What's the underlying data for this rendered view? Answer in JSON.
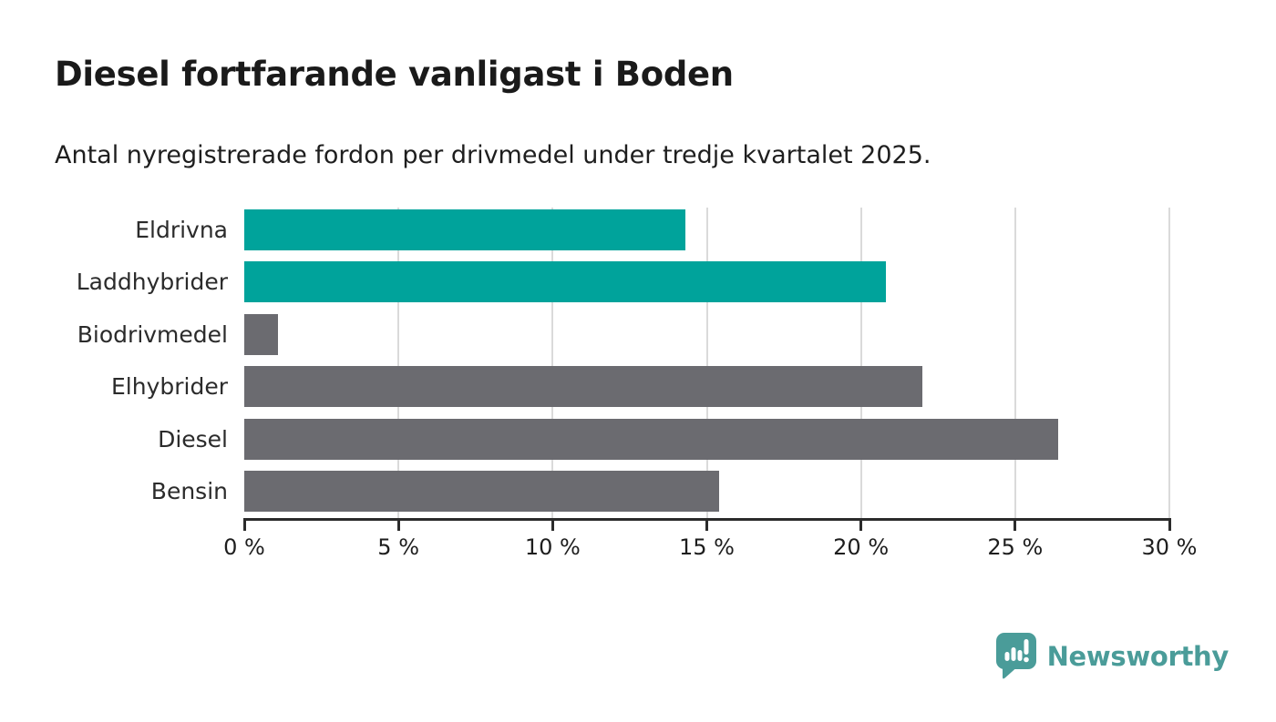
{
  "chart_data": {
    "type": "bar",
    "orientation": "horizontal",
    "title": "Diesel fortfarande vanligast i Boden",
    "subtitle": "Antal nyregistrerade fordon per drivmedel under tredje kvartalet 2025.",
    "categories": [
      "Eldrivna",
      "Laddhybrider",
      "Biodrivmedel",
      "Elhybrider",
      "Diesel",
      "Bensin"
    ],
    "values": [
      14.3,
      20.8,
      1.1,
      22.0,
      26.4,
      15.4
    ],
    "unit": "%",
    "bar_colors": [
      "#00A39B",
      "#00A39B",
      "#6B6B70",
      "#6B6B70",
      "#6B6B70",
      "#6B6B70"
    ],
    "highlighted_categories": [
      "Eldrivna",
      "Laddhybrider"
    ],
    "xlabel": "",
    "ylabel": "",
    "xlim": [
      0,
      30
    ],
    "x_ticks": [
      0,
      5,
      10,
      15,
      20,
      25,
      30
    ],
    "x_tick_labels": [
      "0 %",
      "5 %",
      "10 %",
      "15 %",
      "20 %",
      "25 %",
      "30 %"
    ],
    "grid": "vertical-light",
    "legend": "none"
  },
  "branding": {
    "logo_text": "Newsworthy",
    "logo_icon": "bar-chart-speech-bubble"
  },
  "colors": {
    "accent_teal": "#00A39B",
    "neutral_gray": "#6B6B70",
    "logo_teal": "#4A9C99",
    "axis": "#2B2B2B",
    "gridline": "#DADADA",
    "title_text": "#1A1A1A",
    "body_text": "#1E1E1E"
  }
}
